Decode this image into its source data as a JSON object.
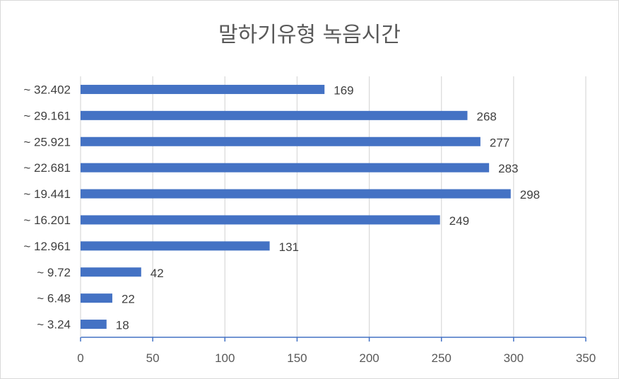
{
  "chart_data": {
    "type": "bar",
    "orientation": "horizontal",
    "title": "말하기유형 녹음시간",
    "categories": [
      "~ 3.24",
      "~ 6.48",
      "~ 9.72",
      "~ 12.961",
      "~ 16.201",
      "~ 19.441",
      "~ 22.681",
      "~ 25.921",
      "~ 29.161",
      "~ 32.402"
    ],
    "values": [
      18,
      22,
      42,
      131,
      249,
      298,
      283,
      277,
      268,
      169
    ],
    "xlim": [
      0,
      350
    ],
    "xticks": [
      0,
      50,
      100,
      150,
      200,
      250,
      300,
      350
    ],
    "grid": true,
    "data_labels": true,
    "bar_color": "#4472c4",
    "grid_color": "#d9d9d9"
  }
}
